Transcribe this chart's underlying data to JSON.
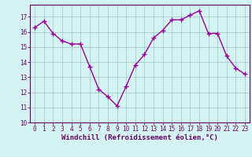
{
  "x": [
    0,
    1,
    2,
    3,
    4,
    5,
    6,
    7,
    8,
    9,
    10,
    11,
    12,
    13,
    14,
    15,
    16,
    17,
    18,
    19,
    20,
    21,
    22,
    23
  ],
  "y": [
    16.3,
    16.7,
    15.9,
    15.4,
    15.2,
    15.2,
    13.7,
    12.2,
    11.7,
    11.1,
    12.4,
    13.8,
    14.5,
    15.6,
    16.1,
    16.8,
    16.8,
    17.1,
    17.4,
    15.9,
    15.9,
    14.4,
    13.6,
    13.2
  ],
  "line_color": "#990099",
  "marker": "+",
  "markersize": 4,
  "linewidth": 1.0,
  "background_color": "#d4f4f4",
  "grid_color": "#aacccc",
  "xlabel": "Windchill (Refroidissement éolien,°C)",
  "ylabel": "",
  "ylim": [
    10,
    17.8
  ],
  "xlim": [
    -0.5,
    23.5
  ],
  "yticks": [
    10,
    11,
    12,
    13,
    14,
    15,
    16,
    17
  ],
  "xticks": [
    0,
    1,
    2,
    3,
    4,
    5,
    6,
    7,
    8,
    9,
    10,
    11,
    12,
    13,
    14,
    15,
    16,
    17,
    18,
    19,
    20,
    21,
    22,
    23
  ],
  "tick_label_fontsize": 5.5,
  "xlabel_fontsize": 6.5,
  "axis_color": "#660066"
}
